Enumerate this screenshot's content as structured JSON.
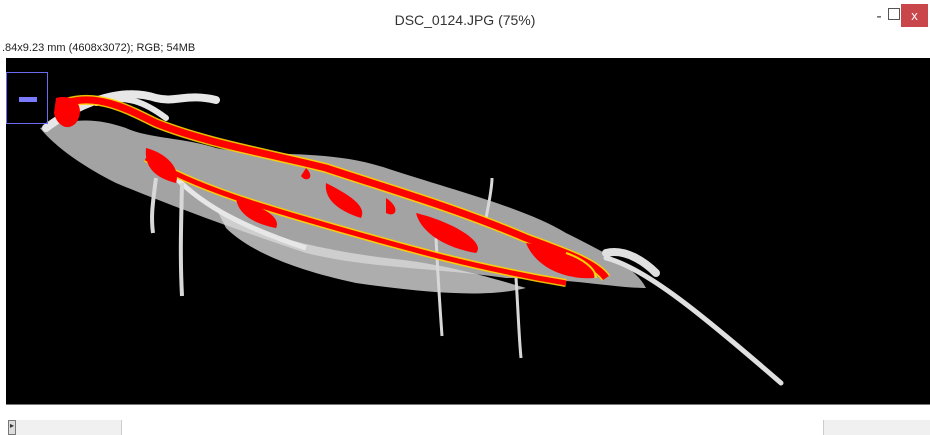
{
  "window": {
    "title": "DSC_0124.JPG (75%)",
    "minimize": "-",
    "close": "x"
  },
  "info": {
    "text": ".84x9.23 mm (4608x3072); RGB; 54MB"
  },
  "bottom": {
    "scroll_left_label": "▸"
  },
  "colors": {
    "background": "#000000",
    "overlay_red": "#ff0000",
    "outline_yellow": "#ffd200",
    "branch_white": "#e6e6e6",
    "close_button": "#c9464b"
  }
}
